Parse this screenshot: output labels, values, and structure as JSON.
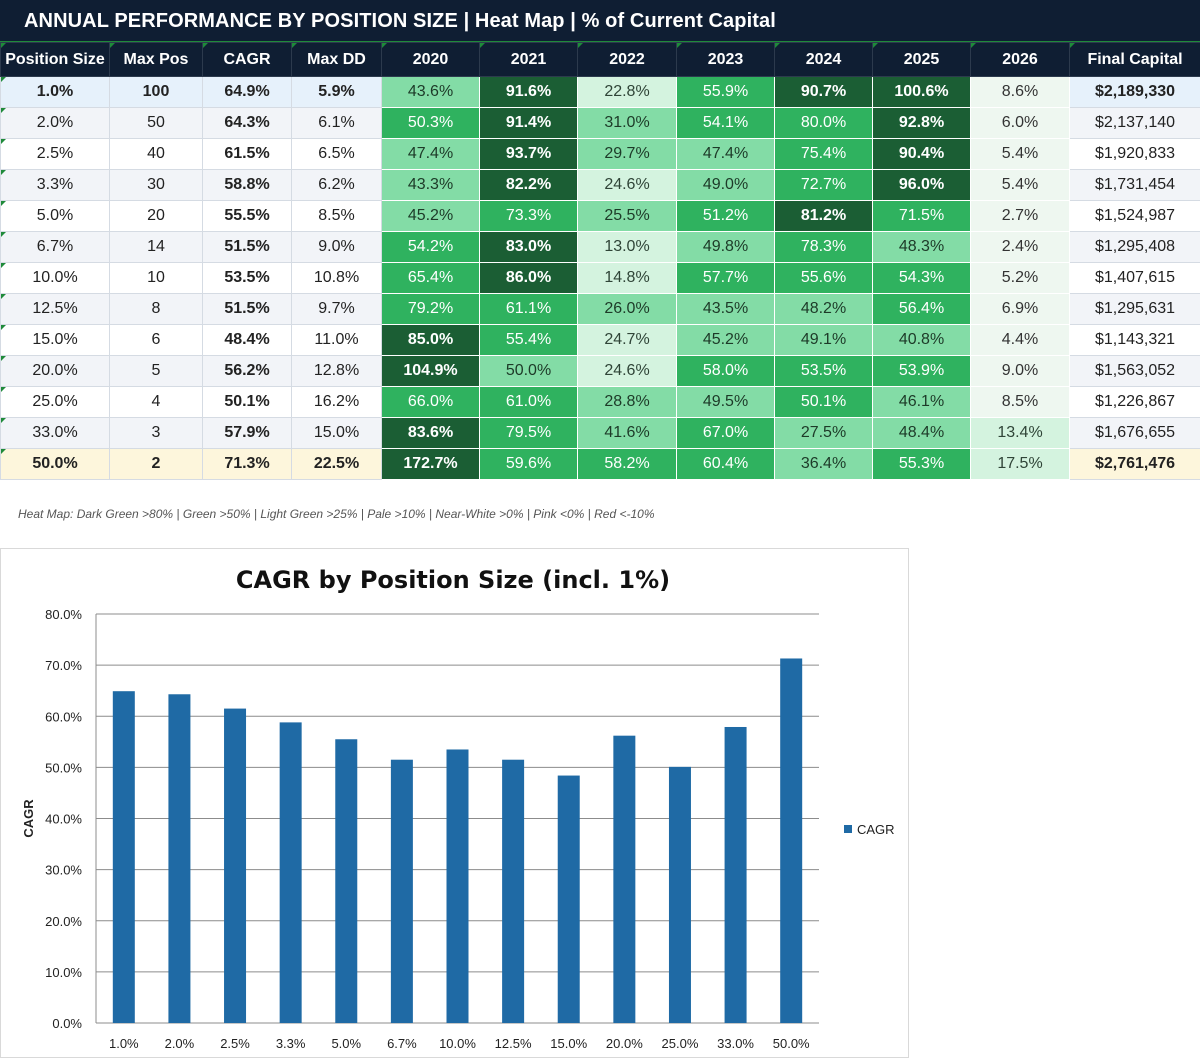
{
  "header": {
    "title": "ANNUAL PERFORMANCE BY POSITION SIZE  |  Heat Map  |  % of Current Capital"
  },
  "table": {
    "columns": [
      "Position Size",
      "Max Pos",
      "CAGR",
      "Max DD",
      "2020",
      "2021",
      "2022",
      "2023",
      "2024",
      "2025",
      "2026",
      "Final Capital"
    ],
    "rows": [
      {
        "size": "1.0%",
        "max_pos": "100",
        "cagr": "64.9%",
        "max_dd": "5.9%",
        "years": [
          "43.6%",
          "91.6%",
          "22.8%",
          "55.9%",
          "90.7%",
          "100.6%",
          "8.6%"
        ],
        "final": "$2,189,330"
      },
      {
        "size": "2.0%",
        "max_pos": "50",
        "cagr": "64.3%",
        "max_dd": "6.1%",
        "years": [
          "50.3%",
          "91.4%",
          "31.0%",
          "54.1%",
          "80.0%",
          "92.8%",
          "6.0%"
        ],
        "final": "$2,137,140"
      },
      {
        "size": "2.5%",
        "max_pos": "40",
        "cagr": "61.5%",
        "max_dd": "6.5%",
        "years": [
          "47.4%",
          "93.7%",
          "29.7%",
          "47.4%",
          "75.4%",
          "90.4%",
          "5.4%"
        ],
        "final": "$1,920,833"
      },
      {
        "size": "3.3%",
        "max_pos": "30",
        "cagr": "58.8%",
        "max_dd": "6.2%",
        "years": [
          "43.3%",
          "82.2%",
          "24.6%",
          "49.0%",
          "72.7%",
          "96.0%",
          "5.4%"
        ],
        "final": "$1,731,454"
      },
      {
        "size": "5.0%",
        "max_pos": "20",
        "cagr": "55.5%",
        "max_dd": "8.5%",
        "years": [
          "45.2%",
          "73.3%",
          "25.5%",
          "51.2%",
          "81.2%",
          "71.5%",
          "2.7%"
        ],
        "final": "$1,524,987"
      },
      {
        "size": "6.7%",
        "max_pos": "14",
        "cagr": "51.5%",
        "max_dd": "9.0%",
        "years": [
          "54.2%",
          "83.0%",
          "13.0%",
          "49.8%",
          "78.3%",
          "48.3%",
          "2.4%"
        ],
        "final": "$1,295,408"
      },
      {
        "size": "10.0%",
        "max_pos": "10",
        "cagr": "53.5%",
        "max_dd": "10.8%",
        "years": [
          "65.4%",
          "86.0%",
          "14.8%",
          "57.7%",
          "55.6%",
          "54.3%",
          "5.2%"
        ],
        "final": "$1,407,615"
      },
      {
        "size": "12.5%",
        "max_pos": "8",
        "cagr": "51.5%",
        "max_dd": "9.7%",
        "years": [
          "79.2%",
          "61.1%",
          "26.0%",
          "43.5%",
          "48.2%",
          "56.4%",
          "6.9%"
        ],
        "final": "$1,295,631"
      },
      {
        "size": "15.0%",
        "max_pos": "6",
        "cagr": "48.4%",
        "max_dd": "11.0%",
        "years": [
          "85.0%",
          "55.4%",
          "24.7%",
          "45.2%",
          "49.1%",
          "40.8%",
          "4.4%"
        ],
        "final": "$1,143,321"
      },
      {
        "size": "20.0%",
        "max_pos": "5",
        "cagr": "56.2%",
        "max_dd": "12.8%",
        "years": [
          "104.9%",
          "50.0%",
          "24.6%",
          "58.0%",
          "53.5%",
          "53.9%",
          "9.0%"
        ],
        "final": "$1,563,052"
      },
      {
        "size": "25.0%",
        "max_pos": "4",
        "cagr": "50.1%",
        "max_dd": "16.2%",
        "years": [
          "66.0%",
          "61.0%",
          "28.8%",
          "49.5%",
          "50.1%",
          "46.1%",
          "8.5%"
        ],
        "final": "$1,226,867"
      },
      {
        "size": "33.0%",
        "max_pos": "3",
        "cagr": "57.9%",
        "max_dd": "15.0%",
        "years": [
          "83.6%",
          "79.5%",
          "41.6%",
          "67.0%",
          "27.5%",
          "48.4%",
          "13.4%"
        ],
        "final": "$1,676,655"
      },
      {
        "size": "50.0%",
        "max_pos": "2",
        "cagr": "71.3%",
        "max_dd": "22.5%",
        "years": [
          "172.7%",
          "59.6%",
          "58.2%",
          "60.4%",
          "36.4%",
          "55.3%",
          "17.5%"
        ],
        "final": "$2,761,476"
      }
    ]
  },
  "legend_note": "Heat Map: Dark Green >80% | Green >50% | Light Green >25% | Pale >10% | Near-White >0% | Pink <0% | Red <-10%",
  "colors": {
    "header_bg": "#0f1e33",
    "bar": "#1f6aa5",
    "heat_dark": "#1b5e34",
    "heat_green": "#2fb25f",
    "heat_light": "#83dca6",
    "heat_pale": "#d4f3df",
    "heat_white": "#eef7f0"
  },
  "chart_data": {
    "type": "bar",
    "title": "CAGR by Position Size (incl. 1%)",
    "xlabel": "",
    "ylabel": "CAGR",
    "categories": [
      "1.0%",
      "2.0%",
      "2.5%",
      "3.3%",
      "5.0%",
      "6.7%",
      "10.0%",
      "12.5%",
      "15.0%",
      "20.0%",
      "25.0%",
      "33.0%",
      "50.0%"
    ],
    "series": [
      {
        "name": "CAGR",
        "values": [
          64.9,
          64.3,
          61.5,
          58.8,
          55.5,
          51.5,
          53.5,
          51.5,
          48.4,
          56.2,
          50.1,
          57.9,
          71.3
        ]
      }
    ],
    "ylim": [
      0,
      80
    ],
    "yticks": [
      "0.0%",
      "10.0%",
      "20.0%",
      "30.0%",
      "40.0%",
      "50.0%",
      "60.0%",
      "70.0%",
      "80.0%"
    ],
    "legend": "right",
    "grid": true
  }
}
